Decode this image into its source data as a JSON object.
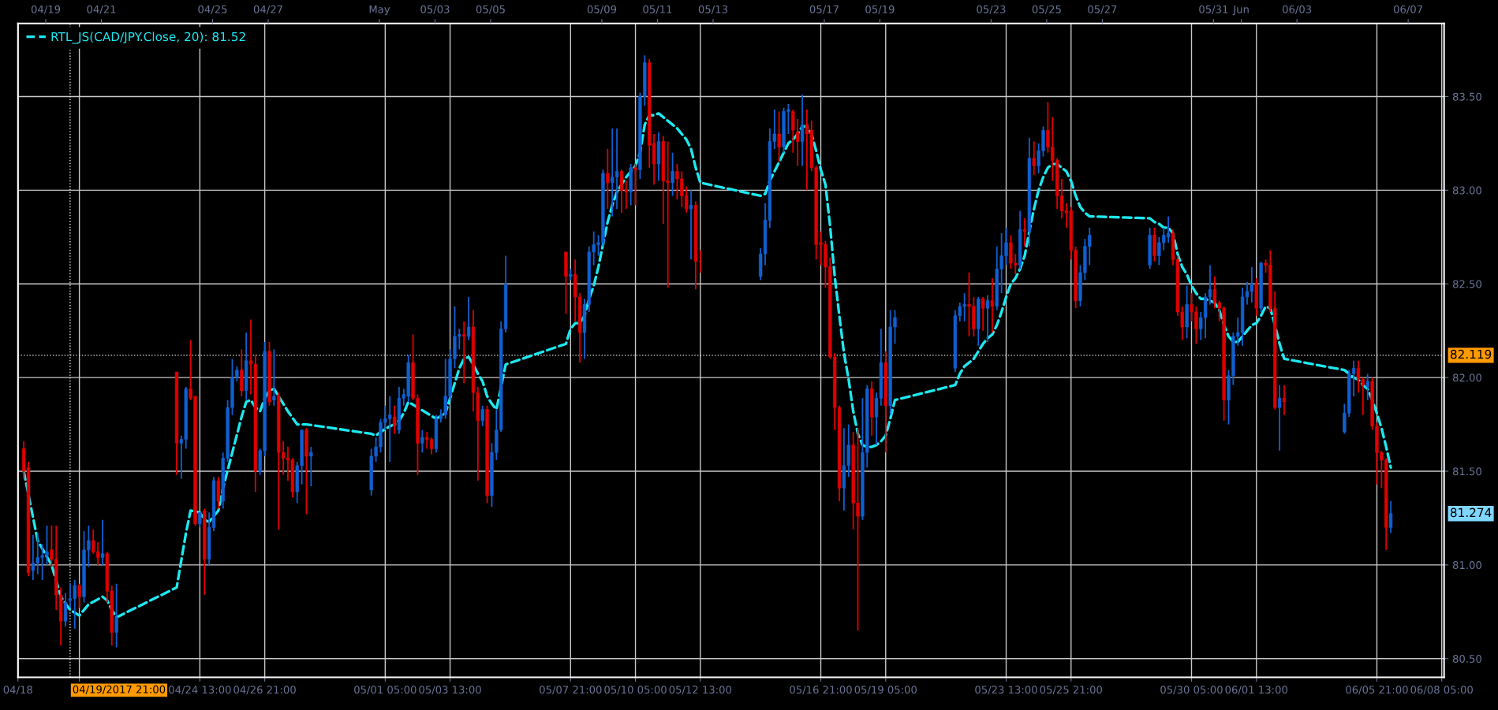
{
  "chart_data": {
    "type": "candlestick",
    "x": [
      "2017-04-18T05:00",
      "2017-04-18T09:00",
      "2017-04-18T13:00",
      "2017-04-18T17:00",
      "2017-04-18T21:00",
      "2017-04-19T01:00",
      "2017-04-19T05:00",
      "2017-04-19T09:00",
      "2017-04-19T13:00",
      "2017-04-19T17:00",
      "2017-04-19T21:00",
      "2017-04-20T01:00",
      "2017-04-20T05:00",
      "2017-04-20T09:00",
      "2017-04-20T13:00",
      "2017-04-20T17:00",
      "2017-04-20T21:00",
      "2017-04-21T01:00",
      "2017-04-21T05:00",
      "2017-04-21T09:00",
      "2017-04-21T13:00",
      "2017-04-23T17:00",
      "2017-04-23T21:00",
      "2017-04-24T01:00",
      "2017-04-24T05:00",
      "2017-04-24T09:00",
      "2017-04-24T13:00",
      "2017-04-24T17:00",
      "2017-04-24T21:00",
      "2017-04-25T01:00",
      "2017-04-25T05:00",
      "2017-04-25T09:00",
      "2017-04-25T13:00",
      "2017-04-25T17:00",
      "2017-04-25T21:00",
      "2017-04-26T01:00",
      "2017-04-26T05:00",
      "2017-04-26T09:00",
      "2017-04-26T13:00",
      "2017-04-26T17:00",
      "2017-04-26T21:00",
      "2017-04-27T01:00",
      "2017-04-27T05:00",
      "2017-04-27T09:00",
      "2017-04-27T13:00",
      "2017-04-27T17:00",
      "2017-04-27T21:00",
      "2017-04-28T01:00",
      "2017-04-28T05:00",
      "2017-04-28T09:00",
      "2017-04-28T13:00",
      "2017-04-30T17:00",
      "2017-04-30T21:00",
      "2017-05-01T01:00",
      "2017-05-01T05:00",
      "2017-05-01T09:00",
      "2017-05-01T13:00",
      "2017-05-01T17:00",
      "2017-05-01T21:00",
      "2017-05-02T01:00",
      "2017-05-02T05:00",
      "2017-05-02T09:00",
      "2017-05-02T13:00",
      "2017-05-02T17:00",
      "2017-05-02T21:00",
      "2017-05-03T01:00",
      "2017-05-03T05:00",
      "2017-05-03T09:00",
      "2017-05-03T13:00",
      "2017-05-03T17:00",
      "2017-05-03T21:00",
      "2017-05-04T01:00",
      "2017-05-04T05:00",
      "2017-05-04T09:00",
      "2017-05-04T13:00",
      "2017-05-04T17:00",
      "2017-05-04T21:00",
      "2017-05-05T01:00",
      "2017-05-05T05:00",
      "2017-05-05T09:00",
      "2017-05-05T13:00",
      "2017-05-07T17:00",
      "2017-05-07T21:00",
      "2017-05-08T01:00",
      "2017-05-08T05:00",
      "2017-05-08T09:00",
      "2017-05-08T13:00",
      "2017-05-08T17:00",
      "2017-05-08T21:00",
      "2017-05-09T01:00",
      "2017-05-09T05:00",
      "2017-05-09T09:00",
      "2017-05-09T13:00",
      "2017-05-09T17:00",
      "2017-05-09T21:00",
      "2017-05-10T01:00",
      "2017-05-10T05:00",
      "2017-05-10T09:00",
      "2017-05-10T13:00",
      "2017-05-10T17:00",
      "2017-05-10T21:00",
      "2017-05-11T01:00",
      "2017-05-11T05:00",
      "2017-05-11T09:00",
      "2017-05-11T13:00",
      "2017-05-11T17:00",
      "2017-05-11T21:00",
      "2017-05-12T01:00",
      "2017-05-12T05:00",
      "2017-05-12T09:00",
      "2017-05-12T13:00",
      "2017-05-14T17:00",
      "2017-05-14T21:00",
      "2017-05-15T01:00",
      "2017-05-15T05:00",
      "2017-05-15T09:00",
      "2017-05-15T13:00",
      "2017-05-15T17:00",
      "2017-05-15T21:00",
      "2017-05-16T01:00",
      "2017-05-16T05:00",
      "2017-05-16T09:00",
      "2017-05-16T13:00",
      "2017-05-16T17:00",
      "2017-05-16T21:00",
      "2017-05-17T01:00",
      "2017-05-17T05:00",
      "2017-05-17T09:00",
      "2017-05-17T13:00",
      "2017-05-17T17:00",
      "2017-05-17T21:00",
      "2017-05-18T01:00",
      "2017-05-18T05:00",
      "2017-05-18T09:00",
      "2017-05-18T13:00",
      "2017-05-18T17:00",
      "2017-05-18T21:00",
      "2017-05-19T01:00",
      "2017-05-19T05:00",
      "2017-05-19T09:00",
      "2017-05-19T13:00",
      "2017-05-21T17:00",
      "2017-05-21T21:00",
      "2017-05-22T01:00",
      "2017-05-22T05:00",
      "2017-05-22T09:00",
      "2017-05-22T13:00",
      "2017-05-22T17:00",
      "2017-05-22T21:00",
      "2017-05-23T01:00",
      "2017-05-23T05:00",
      "2017-05-23T09:00",
      "2017-05-23T13:00",
      "2017-05-23T17:00",
      "2017-05-23T21:00",
      "2017-05-24T01:00",
      "2017-05-24T05:00",
      "2017-05-24T09:00",
      "2017-05-24T13:00",
      "2017-05-24T17:00",
      "2017-05-24T21:00",
      "2017-05-25T01:00",
      "2017-05-25T05:00",
      "2017-05-25T09:00",
      "2017-05-25T13:00",
      "2017-05-25T17:00",
      "2017-05-25T21:00",
      "2017-05-26T01:00",
      "2017-05-26T05:00",
      "2017-05-26T09:00",
      "2017-05-26T13:00",
      "2017-05-28T17:00",
      "2017-05-28T21:00",
      "2017-05-29T01:00",
      "2017-05-29T05:00",
      "2017-05-29T09:00",
      "2017-05-29T13:00",
      "2017-05-29T17:00",
      "2017-05-29T21:00",
      "2017-05-30T01:00",
      "2017-05-30T05:00",
      "2017-05-30T09:00",
      "2017-05-30T13:00",
      "2017-05-30T17:00",
      "2017-05-30T21:00",
      "2017-05-31T01:00",
      "2017-05-31T05:00",
      "2017-05-31T09:00",
      "2017-05-31T13:00",
      "2017-05-31T17:00",
      "2017-05-31T21:00",
      "2017-06-01T01:00",
      "2017-06-01T05:00",
      "2017-06-01T09:00",
      "2017-06-01T13:00",
      "2017-06-01T17:00",
      "2017-06-01T21:00",
      "2017-06-02T01:00",
      "2017-06-02T05:00",
      "2017-06-02T09:00",
      "2017-06-02T13:00",
      "2017-06-04T17:00",
      "2017-06-04T21:00",
      "2017-06-05T01:00",
      "2017-06-05T05:00",
      "2017-06-05T09:00",
      "2017-06-05T13:00",
      "2017-06-05T17:00",
      "2017-06-05T21:00",
      "2017-06-06T01:00",
      "2017-06-06T05:00",
      "2017-06-06T09:00"
    ],
    "ohlc": [
      [
        81.62,
        81.66,
        81.46,
        81.5
      ],
      [
        81.52,
        81.55,
        80.94,
        80.96
      ],
      [
        80.97,
        81.16,
        80.92,
        81.01
      ],
      [
        81.01,
        81.17,
        80.95,
        81.04
      ],
      [
        81.04,
        81.11,
        80.92,
        81.05
      ],
      [
        81.05,
        81.21,
        81.0,
        81.07
      ],
      [
        81.08,
        81.21,
        80.99,
        81.03
      ],
      [
        81.03,
        81.21,
        80.76,
        80.84
      ],
      [
        80.84,
        80.88,
        80.57,
        80.7
      ],
      [
        80.7,
        80.85,
        80.67,
        80.8
      ],
      [
        80.81,
        80.9,
        80.77,
        80.82
      ],
      [
        80.82,
        80.92,
        80.66,
        80.89
      ],
      [
        80.89,
        80.9,
        80.77,
        80.83
      ],
      [
        80.83,
        81.18,
        80.8,
        81.08
      ],
      [
        81.08,
        81.21,
        80.99,
        81.13
      ],
      [
        81.13,
        81.19,
        81.06,
        81.07
      ],
      [
        81.07,
        81.12,
        81.0,
        81.04
      ],
      [
        81.04,
        81.24,
        81.0,
        81.06
      ],
      [
        81.06,
        81.07,
        80.8,
        80.86
      ],
      [
        80.86,
        80.89,
        80.57,
        80.64
      ],
      [
        80.64,
        80.9,
        80.56,
        80.72
      ],
      [
        82.03,
        82.03,
        81.48,
        81.65
      ],
      [
        81.65,
        81.69,
        81.46,
        81.67
      ],
      [
        81.67,
        81.95,
        81.62,
        81.94
      ],
      [
        81.94,
        82.2,
        81.88,
        81.89
      ],
      [
        81.9,
        81.9,
        81.21,
        81.22
      ],
      [
        81.22,
        81.28,
        81.2,
        81.28
      ],
      [
        81.29,
        81.3,
        80.84,
        81.03
      ],
      [
        81.03,
        81.28,
        81.0,
        81.2
      ],
      [
        81.2,
        81.47,
        81.18,
        81.45
      ],
      [
        81.45,
        81.47,
        81.3,
        81.34
      ],
      [
        81.34,
        81.6,
        81.3,
        81.57
      ],
      [
        81.57,
        81.88,
        81.55,
        81.84
      ],
      [
        81.84,
        82.1,
        81.8,
        82.0
      ],
      [
        82.0,
        82.06,
        81.98,
        82.04
      ],
      [
        82.04,
        82.15,
        81.9,
        81.93
      ],
      [
        81.93,
        82.24,
        81.88,
        82.09
      ],
      [
        82.09,
        82.31,
        81.91,
        82.07
      ],
      [
        82.07,
        82.12,
        81.39,
        81.5
      ],
      [
        81.5,
        81.62,
        81.48,
        81.61
      ],
      [
        81.61,
        82.19,
        81.58,
        82.14
      ],
      [
        82.14,
        82.19,
        81.85,
        81.87
      ],
      [
        81.88,
        82.15,
        81.85,
        81.9
      ],
      [
        81.9,
        81.92,
        81.19,
        81.6
      ],
      [
        81.6,
        81.66,
        81.48,
        81.57
      ],
      [
        81.57,
        81.63,
        81.45,
        81.56
      ],
      [
        81.56,
        81.57,
        81.36,
        81.39
      ],
      [
        81.39,
        81.55,
        81.33,
        81.53
      ],
      [
        81.53,
        81.72,
        81.43,
        81.72
      ],
      [
        81.72,
        81.73,
        81.27,
        81.58
      ],
      [
        81.58,
        81.63,
        81.42,
        81.6
      ],
      [
        81.4,
        81.62,
        81.37,
        81.58
      ],
      [
        81.58,
        81.68,
        81.55,
        81.63
      ],
      [
        81.63,
        81.78,
        81.6,
        81.76
      ],
      [
        81.76,
        81.85,
        81.72,
        81.78
      ],
      [
        81.78,
        81.9,
        81.55,
        81.8
      ],
      [
        81.79,
        81.85,
        81.7,
        81.74
      ],
      [
        81.72,
        81.95,
        81.7,
        81.89
      ],
      [
        81.89,
        81.94,
        81.85,
        81.91
      ],
      [
        81.9,
        82.12,
        81.87,
        82.08
      ],
      [
        82.08,
        82.23,
        81.88,
        81.89
      ],
      [
        81.89,
        81.91,
        81.48,
        81.65
      ],
      [
        81.65,
        81.72,
        81.6,
        81.68
      ],
      [
        81.68,
        81.71,
        81.62,
        81.67
      ],
      [
        81.67,
        81.68,
        81.59,
        81.62
      ],
      [
        81.62,
        81.8,
        81.6,
        81.78
      ],
      [
        81.78,
        81.83,
        81.76,
        81.8
      ],
      [
        81.8,
        82.1,
        81.78,
        81.9
      ],
      [
        81.9,
        82.15,
        81.88,
        82.1
      ],
      [
        82.1,
        82.38,
        82.05,
        82.22
      ],
      [
        82.22,
        82.26,
        82.15,
        82.23
      ],
      [
        82.23,
        82.3,
        81.97,
        82.22
      ],
      [
        82.22,
        82.43,
        82.2,
        82.27
      ],
      [
        82.27,
        82.36,
        81.82,
        81.92
      ],
      [
        81.92,
        81.95,
        81.45,
        81.77
      ],
      [
        81.77,
        81.85,
        81.74,
        81.83
      ],
      [
        81.83,
        81.85,
        81.33,
        81.37
      ],
      [
        81.37,
        81.65,
        81.31,
        81.6
      ],
      [
        81.6,
        81.83,
        81.56,
        81.72
      ],
      [
        81.72,
        82.3,
        81.71,
        82.26
      ],
      [
        82.26,
        82.65,
        82.24,
        82.5
      ],
      [
        82.67,
        82.67,
        82.34,
        82.54
      ],
      [
        82.54,
        82.58,
        82.52,
        82.55
      ],
      [
        82.55,
        82.63,
        82.3,
        82.43
      ],
      [
        82.43,
        82.45,
        82.08,
        82.24
      ],
      [
        82.24,
        82.42,
        82.1,
        82.39
      ],
      [
        82.39,
        82.7,
        82.35,
        82.67
      ],
      [
        82.67,
        82.78,
        82.6,
        82.71
      ],
      [
        82.71,
        82.76,
        82.65,
        82.72
      ],
      [
        82.72,
        83.11,
        82.7,
        83.09
      ],
      [
        83.09,
        83.22,
        82.9,
        83.04
      ],
      [
        83.04,
        83.33,
        82.86,
        83.07
      ],
      [
        83.07,
        83.33,
        82.9,
        83.1
      ],
      [
        83.1,
        83.11,
        82.88,
        83.0
      ],
      [
        83.0,
        83.05,
        82.9,
        82.99
      ],
      [
        82.99,
        83.14,
        82.92,
        83.12
      ],
      [
        83.12,
        83.14,
        82.92,
        83.11
      ],
      [
        83.11,
        83.52,
        83.06,
        83.5
      ],
      [
        83.5,
        83.72,
        83.45,
        83.68
      ],
      [
        83.68,
        83.7,
        83.12,
        83.24
      ],
      [
        83.25,
        83.3,
        83.03,
        83.14
      ],
      [
        83.14,
        83.31,
        83.05,
        83.26
      ],
      [
        83.26,
        83.29,
        82.82,
        83.05
      ],
      [
        83.05,
        83.26,
        82.48,
        83.04
      ],
      [
        83.04,
        83.2,
        82.97,
        83.1
      ],
      [
        83.1,
        83.14,
        82.95,
        83.06
      ],
      [
        83.06,
        83.1,
        82.91,
        82.97
      ],
      [
        82.97,
        83.02,
        82.88,
        82.9
      ],
      [
        82.9,
        83.0,
        82.63,
        82.92
      ],
      [
        82.92,
        82.94,
        82.47,
        82.62
      ],
      [
        82.62,
        82.68,
        82.56,
        82.62
      ],
      [
        82.54,
        82.69,
        82.52,
        82.66
      ],
      [
        82.66,
        82.93,
        82.6,
        82.84
      ],
      [
        82.84,
        83.33,
        82.8,
        83.26
      ],
      [
        83.26,
        83.43,
        83.22,
        83.3
      ],
      [
        83.3,
        83.42,
        83.15,
        83.23
      ],
      [
        83.23,
        83.44,
        83.2,
        83.42
      ],
      [
        83.42,
        83.46,
        83.3,
        83.43
      ],
      [
        83.42,
        83.43,
        83.2,
        83.32
      ],
      [
        83.31,
        83.38,
        83.13,
        83.26
      ],
      [
        83.26,
        83.51,
        83.13,
        83.35
      ],
      [
        83.35,
        83.43,
        83.0,
        83.3
      ],
      [
        83.32,
        83.37,
        83.1,
        83.12
      ],
      [
        83.12,
        83.13,
        82.63,
        82.71
      ],
      [
        82.72,
        82.78,
        82.6,
        82.71
      ],
      [
        82.71,
        82.73,
        82.48,
        82.59
      ],
      [
        82.59,
        82.64,
        82.1,
        82.11
      ],
      [
        82.11,
        82.13,
        81.72,
        81.84
      ],
      [
        81.84,
        81.85,
        81.34,
        81.41
      ],
      [
        81.41,
        81.73,
        81.29,
        81.53
      ],
      [
        81.53,
        81.75,
        81.47,
        81.64
      ],
      [
        81.64,
        81.71,
        81.19,
        81.33
      ],
      [
        81.33,
        81.73,
        80.65,
        81.26
      ],
      [
        81.26,
        81.89,
        81.24,
        81.6
      ],
      [
        81.6,
        81.96,
        81.52,
        81.94
      ],
      [
        81.94,
        81.98,
        81.69,
        81.79
      ],
      [
        81.79,
        81.92,
        81.64,
        81.89
      ],
      [
        81.89,
        82.26,
        81.85,
        82.08
      ],
      [
        82.08,
        82.14,
        81.6,
        81.85
      ],
      [
        81.85,
        82.36,
        81.8,
        82.27
      ],
      [
        82.27,
        82.36,
        82.18,
        82.32
      ],
      [
        82.05,
        82.36,
        82.03,
        82.33
      ],
      [
        82.33,
        82.4,
        82.3,
        82.38
      ],
      [
        82.38,
        82.45,
        82.3,
        82.39
      ],
      [
        82.39,
        82.56,
        82.22,
        82.38
      ],
      [
        82.38,
        82.43,
        82.22,
        82.26
      ],
      [
        82.26,
        82.43,
        82.17,
        82.42
      ],
      [
        82.42,
        82.43,
        82.25,
        82.37
      ],
      [
        82.37,
        82.44,
        82.19,
        82.41
      ],
      [
        82.41,
        82.53,
        82.24,
        82.38
      ],
      [
        82.38,
        82.7,
        82.36,
        82.58
      ],
      [
        82.58,
        82.77,
        82.45,
        82.65
      ],
      [
        82.65,
        82.8,
        82.6,
        82.72
      ],
      [
        82.72,
        82.76,
        82.58,
        82.61
      ],
      [
        82.61,
        82.66,
        82.55,
        82.6
      ],
      [
        82.6,
        82.89,
        82.58,
        82.79
      ],
      [
        82.79,
        82.85,
        82.7,
        82.78
      ],
      [
        82.78,
        83.28,
        82.7,
        83.17
      ],
      [
        83.17,
        83.26,
        83.08,
        83.13
      ],
      [
        83.13,
        83.25,
        83.09,
        83.21
      ],
      [
        83.21,
        83.34,
        83.18,
        83.32
      ],
      [
        83.32,
        83.47,
        83.2,
        83.23
      ],
      [
        83.23,
        83.39,
        83.05,
        83.16
      ],
      [
        83.16,
        83.17,
        82.9,
        82.97
      ],
      [
        82.97,
        83.06,
        82.85,
        82.89
      ],
      [
        82.89,
        82.93,
        82.8,
        82.88
      ],
      [
        82.89,
        82.91,
        82.63,
        82.68
      ],
      [
        82.68,
        82.7,
        82.37,
        82.41
      ],
      [
        82.41,
        82.6,
        82.38,
        82.56
      ],
      [
        82.56,
        82.74,
        82.52,
        82.7
      ],
      [
        82.7,
        82.8,
        82.6,
        82.76
      ],
      [
        82.6,
        82.8,
        82.58,
        82.76
      ],
      [
        82.76,
        82.8,
        82.62,
        82.65
      ],
      [
        82.65,
        82.75,
        82.6,
        82.72
      ],
      [
        82.72,
        82.8,
        82.68,
        82.76
      ],
      [
        82.75,
        82.86,
        82.72,
        82.77
      ],
      [
        82.77,
        82.79,
        82.6,
        82.63
      ],
      [
        82.63,
        82.65,
        82.33,
        82.35
      ],
      [
        82.35,
        82.38,
        82.2,
        82.27
      ],
      [
        82.27,
        82.49,
        82.21,
        82.39
      ],
      [
        82.39,
        82.45,
        82.3,
        82.35
      ],
      [
        82.35,
        82.38,
        82.18,
        82.26
      ],
      [
        82.26,
        82.35,
        82.2,
        82.32
      ],
      [
        82.32,
        82.45,
        82.21,
        82.43
      ],
      [
        82.43,
        82.6,
        82.39,
        82.47
      ],
      [
        82.47,
        82.54,
        82.37,
        82.4
      ],
      [
        82.4,
        82.41,
        82.3,
        82.37
      ],
      [
        82.37,
        82.38,
        81.77,
        81.88
      ],
      [
        81.88,
        82.04,
        81.75,
        82.01
      ],
      [
        82.01,
        82.24,
        81.96,
        82.22
      ],
      [
        82.22,
        82.32,
        82.17,
        82.24
      ],
      [
        82.24,
        82.48,
        82.17,
        82.43
      ],
      [
        82.43,
        82.51,
        82.39,
        82.46
      ],
      [
        82.46,
        82.59,
        82.4,
        82.5
      ],
      [
        82.5,
        82.53,
        82.33,
        82.37
      ],
      [
        82.37,
        82.62,
        82.35,
        82.61
      ],
      [
        82.61,
        82.63,
        82.56,
        82.6
      ],
      [
        82.6,
        82.68,
        82.35,
        82.37
      ],
      [
        82.37,
        82.46,
        81.83,
        81.84
      ],
      [
        81.84,
        81.96,
        81.61,
        81.89
      ],
      [
        81.89,
        81.96,
        81.8,
        81.87
      ],
      [
        81.71,
        81.86,
        81.7,
        81.81
      ],
      [
        81.81,
        82.04,
        81.79,
        82.02
      ],
      [
        82.02,
        82.09,
        81.9,
        82.05
      ],
      [
        82.05,
        82.09,
        81.92,
        81.99
      ],
      [
        81.99,
        82.0,
        81.8,
        81.96
      ],
      [
        81.95,
        82.02,
        81.88,
        81.98
      ],
      [
        81.98,
        82.0,
        81.72,
        81.74
      ],
      [
        81.74,
        81.76,
        81.43,
        81.6
      ],
      [
        81.6,
        81.61,
        81.41,
        81.56
      ],
      [
        81.56,
        81.57,
        81.08,
        81.2
      ],
      [
        81.2,
        81.34,
        81.17,
        81.274
      ]
    ],
    "colors": [
      "#e00000",
      "#e00000",
      "#1060d0",
      "#1060d0",
      "#1060d0",
      "#1060d0",
      "#e00000",
      "#e00000",
      "#e00000",
      "#1060d0",
      "#1060d0",
      "#1060d0",
      "#e00000",
      "#1060d0",
      "#1060d0",
      "#e00000",
      "#e00000",
      "#1060d0",
      "#e00000",
      "#e00000",
      "#1060d0",
      "#e00000",
      "#1060d0",
      "#1060d0",
      "#e00000",
      "#e00000",
      "#1060d0",
      "#e00000",
      "#1060d0",
      "#1060d0",
      "#e00000",
      "#1060d0",
      "#1060d0",
      "#1060d0",
      "#1060d0",
      "#e00000",
      "#1060d0",
      "#e00000",
      "#e00000",
      "#1060d0",
      "#1060d0",
      "#e00000",
      "#1060d0",
      "#e00000",
      "#e00000",
      "#e00000",
      "#e00000",
      "#1060d0",
      "#1060d0",
      "#e00000",
      "#1060d0",
      "#1060d0",
      "#1060d0",
      "#1060d0",
      "#1060d0",
      "#1060d0",
      "#e00000",
      "#1060d0",
      "#1060d0",
      "#1060d0",
      "#e00000",
      "#e00000",
      "#1060d0",
      "#e00000",
      "#e00000",
      "#1060d0",
      "#1060d0",
      "#1060d0",
      "#1060d0",
      "#1060d0",
      "#1060d0",
      "#e00000",
      "#1060d0",
      "#e00000",
      "#e00000",
      "#1060d0",
      "#e00000",
      "#1060d0",
      "#1060d0",
      "#1060d0",
      "#1060d0",
      "#e00000",
      "#1060d0",
      "#e00000",
      "#e00000",
      "#1060d0",
      "#1060d0",
      "#1060d0",
      "#1060d0",
      "#1060d0",
      "#e00000",
      "#1060d0",
      "#1060d0",
      "#e00000",
      "#e00000",
      "#1060d0",
      "#e00000",
      "#1060d0",
      "#1060d0",
      "#e00000",
      "#e00000",
      "#1060d0",
      "#e00000",
      "#e00000",
      "#1060d0",
      "#e00000",
      "#e00000",
      "#e00000",
      "#1060d0",
      "#e00000",
      "#e00000",
      "#1060d0",
      "#1060d0",
      "#1060d0",
      "#1060d0",
      "#e00000",
      "#1060d0",
      "#1060d0",
      "#e00000",
      "#e00000",
      "#1060d0",
      "#e00000",
      "#e00000",
      "#e00000",
      "#e00000",
      "#e00000",
      "#e00000",
      "#e00000",
      "#e00000",
      "#1060d0",
      "#1060d0",
      "#e00000",
      "#e00000",
      "#1060d0",
      "#1060d0",
      "#e00000",
      "#1060d0",
      "#1060d0",
      "#e00000",
      "#1060d0",
      "#1060d0",
      "#1060d0",
      "#1060d0",
      "#1060d0",
      "#e00000",
      "#e00000",
      "#1060d0",
      "#e00000",
      "#1060d0",
      "#e00000",
      "#1060d0",
      "#1060d0",
      "#1060d0",
      "#e00000",
      "#e00000",
      "#1060d0",
      "#e00000",
      "#1060d0",
      "#e00000",
      "#1060d0",
      "#1060d0",
      "#e00000",
      "#e00000",
      "#e00000",
      "#e00000",
      "#e00000",
      "#e00000",
      "#e00000",
      "#1060d0",
      "#1060d0",
      "#1060d0",
      "#1060d0",
      "#e00000",
      "#1060d0",
      "#1060d0",
      "#1060d0",
      "#e00000",
      "#e00000",
      "#e00000",
      "#1060d0",
      "#e00000",
      "#e00000",
      "#1060d0",
      "#1060d0",
      "#1060d0",
      "#e00000",
      "#e00000",
      "#e00000",
      "#1060d0",
      "#1060d0",
      "#1060d0",
      "#1060d0",
      "#1060d0",
      "#1060d0",
      "#e00000",
      "#1060d0",
      "#e00000",
      "#e00000",
      "#e00000",
      "#1060d0",
      "#e00000",
      "#1060d0",
      "#1060d0",
      "#1060d0",
      "#e00000",
      "#e00000",
      "#1060d0",
      "#e00000",
      "#e00000",
      "#e00000",
      "#e00000",
      "#1060d0"
    ],
    "series": [
      {
        "name": "RTL_JS(CAD/JPY.Close, 20): 81.52",
        "type": "line",
        "color": "#1ee8f0",
        "x": [
          "2017-04-18T05:00",
          "2017-04-18T17:00",
          "2017-04-19T05:00",
          "2017-04-19T13:00",
          "2017-04-19T21:00",
          "2017-04-20T05:00",
          "2017-04-20T13:00",
          "2017-04-21T01:00",
          "2017-04-21T05:00",
          "2017-04-21T09:00",
          "2017-04-21T13:00",
          "2017-04-23T17:00",
          "2017-04-24T01:00",
          "2017-04-24T05:00",
          "2017-04-24T13:00",
          "2017-04-24T17:00",
          "2017-04-24T21:00",
          "2017-04-25T05:00",
          "2017-04-25T09:00",
          "2017-04-25T17:00",
          "2017-04-26T01:00",
          "2017-04-26T05:00",
          "2017-04-26T09:00",
          "2017-04-26T13:00",
          "2017-04-26T17:00",
          "2017-04-26T21:00",
          "2017-04-27T01:00",
          "2017-04-27T05:00",
          "2017-04-27T09:00",
          "2017-04-27T17:00",
          "2017-04-28T01:00",
          "2017-04-28T09:00",
          "2017-04-30T17:00",
          "2017-04-30T21:00",
          "2017-05-01T01:00",
          "2017-05-01T09:00",
          "2017-05-01T13:00",
          "2017-05-01T17:00",
          "2017-05-01T21:00",
          "2017-05-02T01:00",
          "2017-05-02T09:00",
          "2017-05-02T17:00",
          "2017-05-03T01:00",
          "2017-05-03T09:00",
          "2017-05-03T13:00",
          "2017-05-03T17:00",
          "2017-05-03T21:00",
          "2017-05-04T01:00",
          "2017-05-04T05:00",
          "2017-05-04T09:00",
          "2017-05-04T13:00",
          "2017-05-04T17:00",
          "2017-05-04T21:00",
          "2017-05-05T01:00",
          "2017-05-05T05:00",
          "2017-05-05T13:00",
          "2017-05-07T17:00",
          "2017-05-07T21:00",
          "2017-05-08T01:00",
          "2017-05-08T05:00",
          "2017-05-08T09:00",
          "2017-05-08T13:00",
          "2017-05-08T17:00",
          "2017-05-08T21:00",
          "2017-05-09T01:00",
          "2017-05-09T05:00",
          "2017-05-09T09:00",
          "2017-05-09T13:00",
          "2017-05-09T17:00",
          "2017-05-09T21:00",
          "2017-05-10T01:00",
          "2017-05-10T05:00",
          "2017-05-10T09:00",
          "2017-05-10T13:00",
          "2017-05-10T17:00",
          "2017-05-10T21:00",
          "2017-05-11T01:00",
          "2017-05-11T05:00",
          "2017-05-11T09:00",
          "2017-05-11T13:00",
          "2017-05-11T17:00",
          "2017-05-11T21:00",
          "2017-05-12T01:00",
          "2017-05-12T05:00",
          "2017-05-12T09:00",
          "2017-05-12T13:00",
          "2017-05-14T17:00",
          "2017-05-14T21:00",
          "2017-05-15T01:00",
          "2017-05-15T05:00",
          "2017-05-15T09:00",
          "2017-05-15T13:00",
          "2017-05-15T17:00",
          "2017-05-15T21:00",
          "2017-05-16T01:00",
          "2017-05-16T05:00",
          "2017-05-16T09:00",
          "2017-05-16T13:00",
          "2017-05-16T17:00",
          "2017-05-16T21:00",
          "2017-05-17T01:00",
          "2017-05-17T05:00",
          "2017-05-17T09:00",
          "2017-05-17T13:00",
          "2017-05-17T17:00",
          "2017-05-17T21:00",
          "2017-05-18T01:00",
          "2017-05-18T05:00",
          "2017-05-18T09:00",
          "2017-05-18T13:00",
          "2017-05-18T17:00",
          "2017-05-18T21:00",
          "2017-05-19T01:00",
          "2017-05-19T05:00",
          "2017-05-19T09:00",
          "2017-05-19T13:00",
          "2017-05-21T17:00",
          "2017-05-21T21:00",
          "2017-05-22T01:00",
          "2017-05-22T05:00",
          "2017-05-22T09:00",
          "2017-05-22T13:00",
          "2017-05-22T17:00",
          "2017-05-22T21:00",
          "2017-05-23T01:00",
          "2017-05-23T05:00",
          "2017-05-23T09:00",
          "2017-05-23T13:00",
          "2017-05-23T17:00",
          "2017-05-23T21:00",
          "2017-05-24T01:00",
          "2017-05-24T05:00",
          "2017-05-24T09:00",
          "2017-05-24T13:00",
          "2017-05-24T17:00",
          "2017-05-24T21:00",
          "2017-05-25T01:00",
          "2017-05-25T05:00",
          "2017-05-25T09:00",
          "2017-05-25T13:00",
          "2017-05-25T17:00",
          "2017-05-25T21:00",
          "2017-05-26T01:00",
          "2017-05-26T05:00",
          "2017-05-26T09:00",
          "2017-05-26T13:00",
          "2017-05-28T17:00",
          "2017-05-28T21:00",
          "2017-05-29T01:00",
          "2017-05-29T05:00",
          "2017-05-29T09:00",
          "2017-05-29T13:00",
          "2017-05-29T17:00",
          "2017-05-29T21:00",
          "2017-05-30T01:00",
          "2017-05-30T05:00",
          "2017-05-30T09:00",
          "2017-05-30T13:00",
          "2017-05-30T17:00",
          "2017-05-30T21:00",
          "2017-05-31T01:00",
          "2017-05-31T05:00",
          "2017-05-31T09:00",
          "2017-05-31T13:00",
          "2017-05-31T17:00",
          "2017-05-31T21:00",
          "2017-06-01T01:00",
          "2017-06-01T05:00",
          "2017-06-01T09:00",
          "2017-06-01T13:00",
          "2017-06-01T17:00",
          "2017-06-01T21:00",
          "2017-06-02T01:00",
          "2017-06-02T05:00",
          "2017-06-02T09:00",
          "2017-06-02T13:00",
          "2017-06-04T17:00",
          "2017-06-04T21:00",
          "2017-06-05T01:00",
          "2017-06-05T05:00",
          "2017-06-05T09:00",
          "2017-06-05T13:00",
          "2017-06-05T17:00",
          "2017-06-05T21:00",
          "2017-06-06T01:00",
          "2017-06-06T05:00",
          "2017-06-06T09:00"
        ],
        "values": [
          81.5,
          81.13,
          81.0,
          80.83,
          80.76,
          80.73,
          80.79,
          80.83,
          80.81,
          80.76,
          80.72,
          80.88,
          81.17,
          81.29,
          81.28,
          81.24,
          81.23,
          81.29,
          81.41,
          81.6,
          81.79,
          81.87,
          81.88,
          81.84,
          81.82,
          81.89,
          81.93,
          81.94,
          81.9,
          81.82,
          81.75,
          81.75,
          81.7,
          81.69,
          81.71,
          81.74,
          81.75,
          81.77,
          81.81,
          81.87,
          81.84,
          81.81,
          81.78,
          81.81,
          81.89,
          81.97,
          82.05,
          82.1,
          82.11,
          82.07,
          82.02,
          81.98,
          81.9,
          81.86,
          81.83,
          82.07,
          82.18,
          82.26,
          82.29,
          82.29,
          82.33,
          82.42,
          82.49,
          82.59,
          82.71,
          82.83,
          82.92,
          82.99,
          83.03,
          83.07,
          83.1,
          83.13,
          83.2,
          83.35,
          83.4,
          83.4,
          83.41,
          83.39,
          83.37,
          83.35,
          83.33,
          83.3,
          83.27,
          83.22,
          83.12,
          83.04,
          82.97,
          82.98,
          83.05,
          83.1,
          83.15,
          83.2,
          83.25,
          83.27,
          83.3,
          83.34,
          83.34,
          83.3,
          83.21,
          83.11,
          83.03,
          82.81,
          82.54,
          82.33,
          82.13,
          81.99,
          81.82,
          81.7,
          81.64,
          81.63,
          81.63,
          81.64,
          81.66,
          81.69,
          81.78,
          81.88,
          81.96,
          82.02,
          82.06,
          82.08,
          82.1,
          82.14,
          82.18,
          82.21,
          82.23,
          82.28,
          82.35,
          82.43,
          82.5,
          82.53,
          82.58,
          82.65,
          82.78,
          82.9,
          83.0,
          83.07,
          83.12,
          83.14,
          83.14,
          83.12,
          83.1,
          83.05,
          82.97,
          82.91,
          82.88,
          82.86,
          82.85,
          82.83,
          82.82,
          82.8,
          82.8,
          82.77,
          82.66,
          82.59,
          82.55,
          82.49,
          82.45,
          82.42,
          82.42,
          82.41,
          82.4,
          82.36,
          82.28,
          82.22,
          82.19,
          82.19,
          82.22,
          82.25,
          82.28,
          82.29,
          82.33,
          82.38,
          82.37,
          82.28,
          82.18,
          82.1,
          82.04,
          82.02,
          82.0,
          81.99,
          81.96,
          81.94,
          81.88,
          81.81,
          81.73,
          81.63,
          81.52
        ]
      }
    ],
    "line_style": "dashed",
    "legend": "top left",
    "grid": true,
    "xlim": [
      "2017-04-18T00:00",
      "2017-06-08T07:00"
    ],
    "xticks": [
      {
        "value": "2017-04-18T00:00",
        "label": "04/18"
      },
      {
        "value": "2017-04-20T05:00",
        "label": null
      },
      {
        "value": "2017-04-24T13:00",
        "label": "04/24 13:00"
      },
      {
        "value": "2017-04-26T21:00",
        "label": "04/26 21:00"
      },
      {
        "value": "2017-05-01T05:00",
        "label": "05/01 05:00"
      },
      {
        "value": "2017-05-03T13:00",
        "label": "05/03 13:00"
      },
      {
        "value": "2017-05-07T21:00",
        "label": "05/07 21:00"
      },
      {
        "value": "2017-05-10T05:00",
        "label": "05/10 05:00"
      },
      {
        "value": "2017-05-12T13:00",
        "label": "05/12 13:00"
      },
      {
        "value": "2017-05-16T21:00",
        "label": "05/16 21:00"
      },
      {
        "value": "2017-05-19T05:00",
        "label": "05/19 05:00"
      },
      {
        "value": "2017-05-23T13:00",
        "label": "05/23 13:00"
      },
      {
        "value": "2017-05-25T21:00",
        "label": "05/25 21:00"
      },
      {
        "value": "2017-05-30T05:00",
        "label": "05/30 05:00"
      },
      {
        "value": "2017-06-01T13:00",
        "label": "06/01 13:00"
      },
      {
        "value": "2017-06-05T21:00",
        "label": "06/05 21:00"
      },
      {
        "value": "2017-06-08T05:00",
        "label": "06/08 05:00"
      }
    ],
    "x2lim": [
      "2017-04-18T00:00",
      "2017-06-08T07:00"
    ],
    "x2ticks": [
      {
        "value": "2017-04-19",
        "label": "04/19"
      },
      {
        "value": "2017-04-21",
        "label": "04/21"
      },
      {
        "value": "2017-04-25",
        "label": "04/25"
      },
      {
        "value": "2017-04-27",
        "label": "04/27"
      },
      {
        "value": "2017-05-01",
        "label": "May"
      },
      {
        "value": "2017-05-03",
        "label": "05/03"
      },
      {
        "value": "2017-05-05",
        "label": "05/05"
      },
      {
        "value": "2017-05-09",
        "label": "05/09"
      },
      {
        "value": "2017-05-11",
        "label": "05/11"
      },
      {
        "value": "2017-05-13",
        "label": "05/13"
      },
      {
        "value": "2017-05-17",
        "label": "05/17"
      },
      {
        "value": "2017-05-19",
        "label": "05/19"
      },
      {
        "value": "2017-05-23",
        "label": "05/23"
      },
      {
        "value": "2017-05-25",
        "label": "05/25"
      },
      {
        "value": "2017-05-27",
        "label": "05/27"
      },
      {
        "value": "2017-05-31",
        "label": "05/31"
      },
      {
        "value": "2017-06-01",
        "label": "Jun"
      },
      {
        "value": "2017-06-03",
        "label": "06/03"
      },
      {
        "value": "2017-06-07",
        "label": "06/07"
      }
    ],
    "ylim": [
      80.4,
      83.89
    ],
    "yticks": [
      {
        "value": 80.5,
        "label": "80.50"
      },
      {
        "value": 81.0,
        "label": "81.00"
      },
      {
        "value": 81.5,
        "label": "81.50"
      },
      {
        "value": 82.0,
        "label": "82.00"
      },
      {
        "value": 82.5,
        "label": "82.50"
      },
      {
        "value": 83.0,
        "label": "83.00"
      },
      {
        "value": 83.5,
        "label": "83.50"
      }
    ],
    "ref_lines": [
      {
        "axis": "y",
        "value": 82.119,
        "label": "82.119",
        "line_style": "dotted"
      },
      {
        "axis": "x",
        "value": "2017-04-19T21:00",
        "label": "04/19/2017 21:00",
        "line_style": "dotted"
      }
    ],
    "annotations": [
      "81.274"
    ]
  }
}
